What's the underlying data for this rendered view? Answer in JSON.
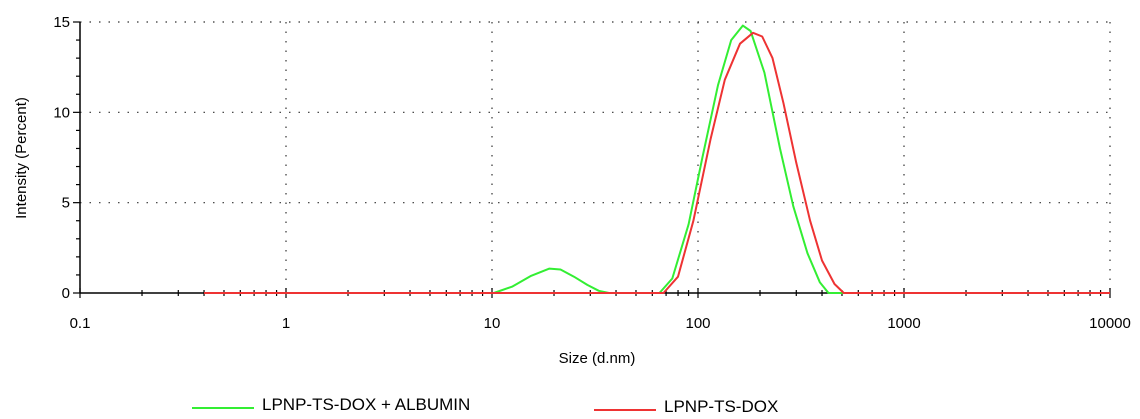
{
  "chart_data": {
    "type": "line",
    "title": "",
    "xlabel": "Size (d.nm)",
    "ylabel": "Intensity (Percent)",
    "x_scale": "log",
    "xlim": [
      0.1,
      10000
    ],
    "ylim": [
      0,
      15
    ],
    "x_ticks": [
      0.1,
      1,
      10,
      100,
      1000,
      10000
    ],
    "x_tick_labels": [
      "0.1",
      "1",
      "10",
      "100",
      "1000",
      "10000"
    ],
    "y_ticks": [
      0,
      5,
      10,
      15
    ],
    "y_tick_labels": [
      "0",
      "5",
      "10",
      "15"
    ],
    "grid": true,
    "legend_position": "bottom",
    "series": [
      {
        "name": "LPNP-TS-DOX + ALBUMIN",
        "color": "#33ee33",
        "points": [
          [
            0.4,
            0
          ],
          [
            10.2,
            0
          ],
          [
            12.5,
            0.35
          ],
          [
            15.5,
            0.95
          ],
          [
            19,
            1.35
          ],
          [
            21.5,
            1.3
          ],
          [
            25,
            0.9
          ],
          [
            29,
            0.45
          ],
          [
            33,
            0.12
          ],
          [
            37,
            0
          ],
          [
            65,
            0
          ],
          [
            75,
            0.8
          ],
          [
            90,
            3.8
          ],
          [
            105,
            7.5
          ],
          [
            125,
            11.5
          ],
          [
            145,
            14.0
          ],
          [
            165,
            14.8
          ],
          [
            180,
            14.5
          ],
          [
            210,
            12.2
          ],
          [
            250,
            8.0
          ],
          [
            290,
            4.8
          ],
          [
            340,
            2.2
          ],
          [
            390,
            0.6
          ],
          [
            430,
            0
          ],
          [
            10000,
            0
          ]
        ]
      },
      {
        "name": "LPNP-TS-DOX",
        "color": "#ee3333",
        "points": [
          [
            0.4,
            0
          ],
          [
            68,
            0
          ],
          [
            80,
            0.9
          ],
          [
            95,
            4.0
          ],
          [
            115,
            8.5
          ],
          [
            135,
            11.8
          ],
          [
            160,
            13.8
          ],
          [
            185,
            14.4
          ],
          [
            205,
            14.2
          ],
          [
            230,
            13.0
          ],
          [
            260,
            10.5
          ],
          [
            300,
            7.2
          ],
          [
            350,
            4.0
          ],
          [
            400,
            1.8
          ],
          [
            460,
            0.5
          ],
          [
            510,
            0
          ],
          [
            10000,
            0
          ]
        ]
      }
    ]
  }
}
